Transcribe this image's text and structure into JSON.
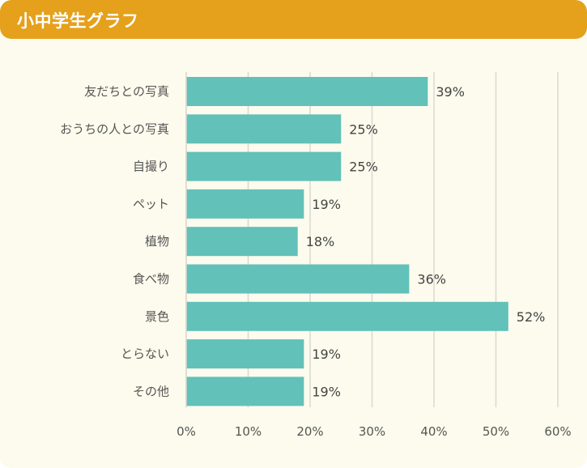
{
  "title": "小中学生グラフ",
  "colors": {
    "header": "#e5a11c",
    "background": "#fcfbed",
    "bar": "#62c1b9",
    "grid": "#d9d9d3"
  },
  "chart_data": {
    "type": "bar",
    "orientation": "horizontal",
    "categories": [
      "友だちとの写真",
      "おうちの人との写真",
      "自撮り",
      "ペット",
      "植物",
      "食べ物",
      "景色",
      "とらない",
      "その他"
    ],
    "values": [
      39,
      25,
      25,
      19,
      18,
      36,
      52,
      19,
      19
    ],
    "data_labels": [
      "39%",
      "25%",
      "25%",
      "19%",
      "18%",
      "36%",
      "52%",
      "19%",
      "19%"
    ],
    "ticks": [
      0,
      10,
      20,
      30,
      40,
      50,
      60
    ],
    "tick_labels": [
      "0%",
      "10%",
      "20%",
      "30%",
      "40%",
      "50%",
      "60%"
    ],
    "xlim": [
      0,
      60
    ],
    "grid": true
  }
}
